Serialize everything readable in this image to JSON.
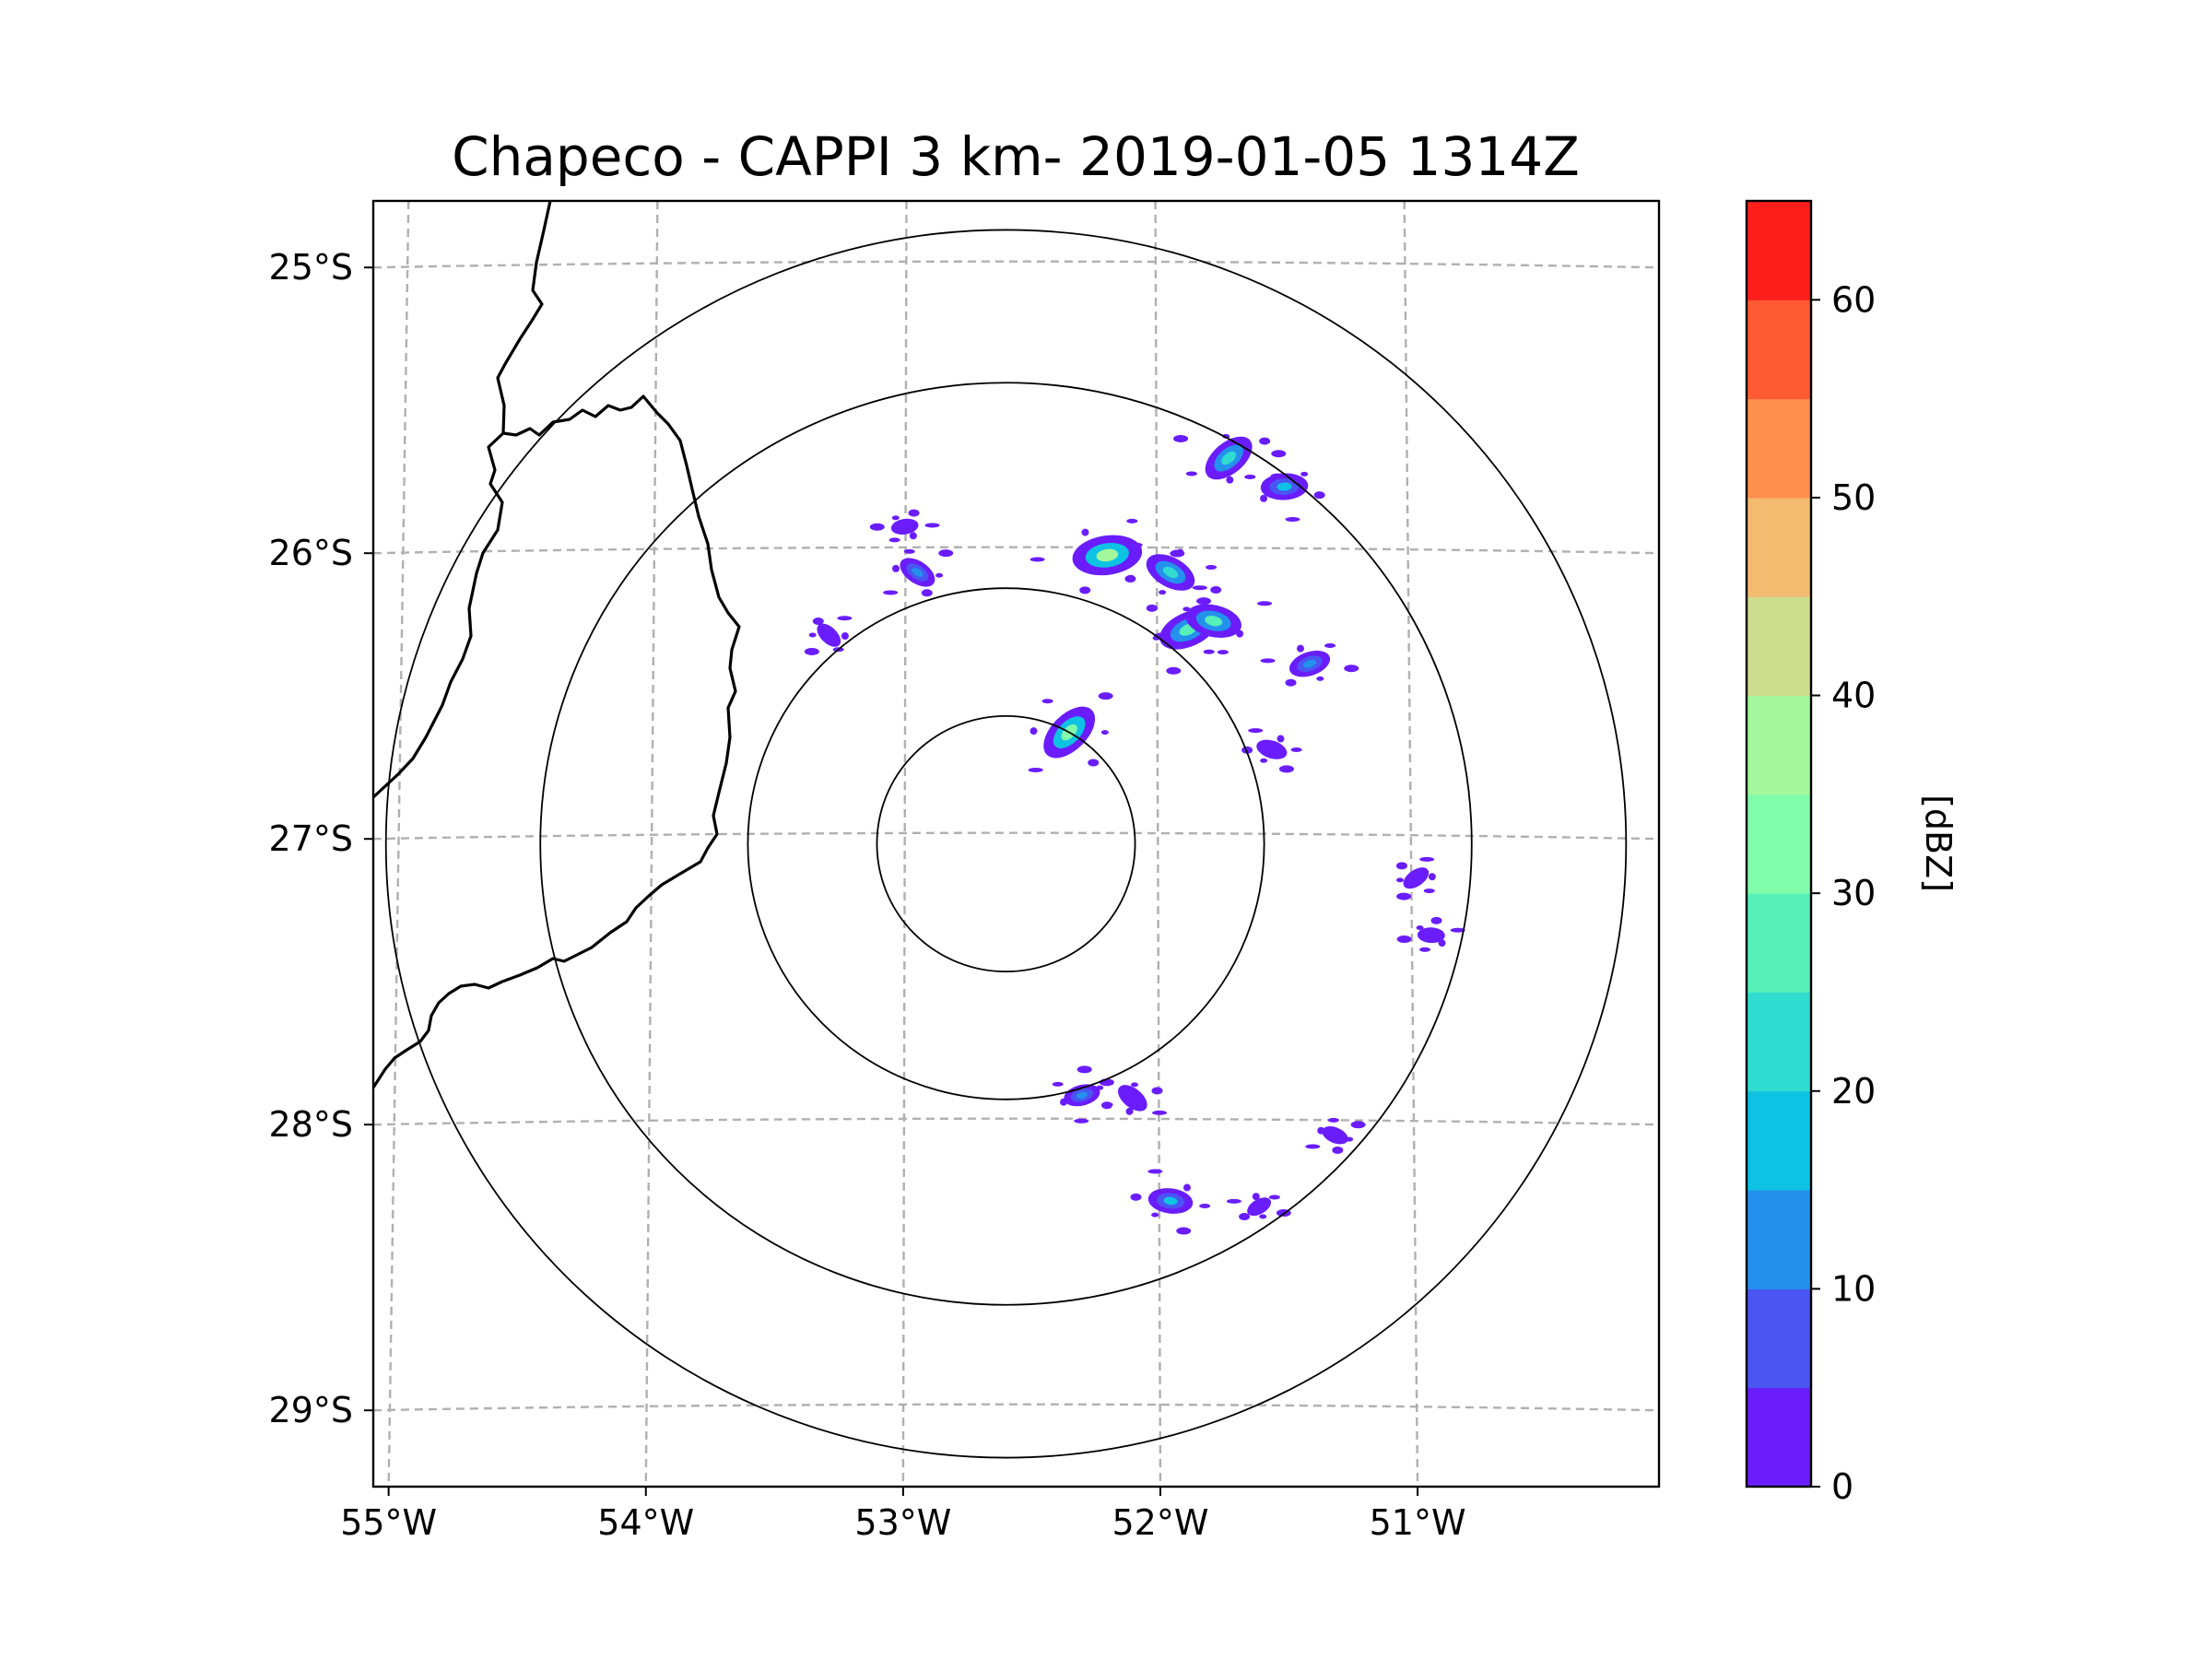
{
  "chart_data": {
    "type": "heatmap",
    "title": "Chapeco - CAPPI 3 km- 2019-01-05 1314Z",
    "xlabel": "",
    "ylabel": "",
    "x_ticks": [
      {
        "value": -55,
        "label": "55°W"
      },
      {
        "value": -54,
        "label": "54°W"
      },
      {
        "value": -53,
        "label": "53°W"
      },
      {
        "value": -52,
        "label": "52°W"
      },
      {
        "value": -51,
        "label": "51°W"
      }
    ],
    "y_ticks": [
      {
        "value": -25,
        "label": "25°S"
      },
      {
        "value": -26,
        "label": "26°S"
      },
      {
        "value": -27,
        "label": "27°S"
      },
      {
        "value": -28,
        "label": "28°S"
      },
      {
        "value": -29,
        "label": "29°S"
      }
    ],
    "xlim": [
      -55.1,
      -50.02
    ],
    "ylim": [
      -29.28,
      -24.78
    ],
    "radar_center": {
      "lon": -52.6,
      "lat": -27.03
    },
    "range_rings_deg": [
      0.51,
      1.02,
      1.84,
      2.45
    ],
    "grid": true,
    "colorbar": {
      "label": "[dBZ]",
      "min": 0,
      "max": 65,
      "ticks": [
        0,
        10,
        20,
        30,
        40,
        50,
        60
      ],
      "tick_labels": [
        "0",
        "10",
        "20",
        "30",
        "40",
        "50",
        "60"
      ],
      "levels": [
        0,
        5,
        10,
        15,
        20,
        25,
        30,
        35,
        40,
        45,
        50,
        55,
        60,
        65
      ],
      "colors": [
        "#6a1dfa",
        "#4a55f2",
        "#2491ec",
        "#0ec2e4",
        "#30dcd0",
        "#56f0b8",
        "#80fcab",
        "#a4f79c",
        "#cddb8d",
        "#f2bb70",
        "#fe8f4f",
        "#fe5a33",
        "#fe1e1c"
      ]
    },
    "echoes": [
      {
        "lon": -52.35,
        "lat": -26.64,
        "dbz": 30
      },
      {
        "lon": -52.2,
        "lat": -26.02,
        "dbz": 35
      },
      {
        "lon": -51.95,
        "lat": -26.08,
        "dbz": 22
      },
      {
        "lon": -51.88,
        "lat": -26.28,
        "dbz": 28
      },
      {
        "lon": -51.78,
        "lat": -26.25,
        "dbz": 25
      },
      {
        "lon": -51.72,
        "lat": -25.68,
        "dbz": 24
      },
      {
        "lon": -51.5,
        "lat": -25.78,
        "dbz": 18
      },
      {
        "lon": -52.95,
        "lat": -26.08,
        "dbz": 12
      },
      {
        "lon": -51.4,
        "lat": -26.4,
        "dbz": 14
      },
      {
        "lon": -51.55,
        "lat": -26.7,
        "dbz": 6
      },
      {
        "lon": -50.98,
        "lat": -27.15,
        "dbz": 4
      },
      {
        "lon": -50.92,
        "lat": -27.35,
        "dbz": 3
      },
      {
        "lon": -52.1,
        "lat": -27.92,
        "dbz": 8
      },
      {
        "lon": -52.3,
        "lat": -27.91,
        "dbz": 10
      },
      {
        "lon": -51.3,
        "lat": -28.05,
        "dbz": 3
      },
      {
        "lon": -51.6,
        "lat": -28.3,
        "dbz": 2
      },
      {
        "lon": -51.95,
        "lat": -28.28,
        "dbz": 16
      },
      {
        "lon": -53.3,
        "lat": -26.3,
        "dbz": 4
      },
      {
        "lon": -53.0,
        "lat": -25.92,
        "dbz": 3
      }
    ]
  }
}
